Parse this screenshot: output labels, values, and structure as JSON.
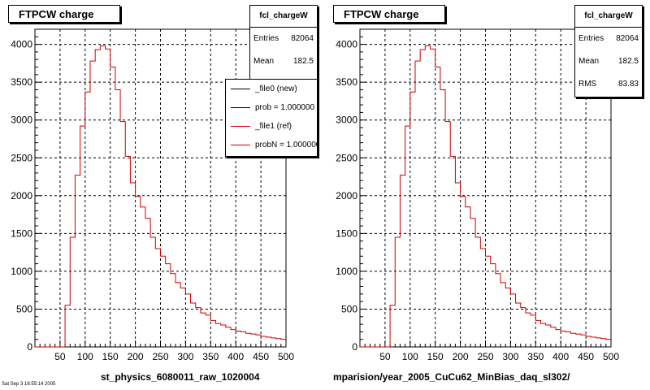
{
  "panels": [
    {
      "title": "FTPCW charge",
      "stats": {
        "name": "fcl_chargeW",
        "entries_label": "Entries",
        "entries": "82064",
        "mean_label": "Mean",
        "mean": "182.5"
      },
      "legend": [
        {
          "label": "_file0 (new)",
          "color": "#000000"
        },
        {
          "label": "prob = 1.000000",
          "color": "#000000"
        },
        {
          "label": "_file1 (ref)",
          "color": "#cc0000"
        },
        {
          "label": "probN = 1.000000",
          "color": "#cc0000"
        }
      ],
      "bottom_label": "st_physics_6080011_raw_1020004"
    },
    {
      "title": "FTPCW charge",
      "stats": {
        "name": "fcl_chargeW",
        "entries_label": "Entries",
        "entries": "82064",
        "mean_label": "Mean",
        "mean": "182.5",
        "rms_label": "RMS",
        "rms": "83.83"
      },
      "bottom_label": "mparision/year_2005_CuCu62_MinBias_daq_sl302/"
    }
  ],
  "footer_text": "Sat Sep 3 16:55:14 2005",
  "chart_data": [
    {
      "type": "area",
      "title": "FTPCW charge",
      "xlabel": "",
      "ylabel": "",
      "xlim": [
        0,
        500
      ],
      "ylim": [
        0,
        4200
      ],
      "x_ticks": [
        50,
        100,
        150,
        200,
        250,
        300,
        350,
        400,
        450,
        500
      ],
      "y_ticks": [
        0,
        500,
        1000,
        1500,
        2000,
        2500,
        3000,
        3500,
        4000
      ],
      "grid": true,
      "bin_width": 10,
      "series": [
        {
          "name": "_file1 (ref)",
          "color": "#cc0000",
          "bin_low_edges": [
            0,
            10,
            20,
            30,
            40,
            50,
            60,
            70,
            80,
            90,
            100,
            110,
            120,
            130,
            140,
            150,
            160,
            170,
            180,
            190,
            200,
            210,
            220,
            230,
            240,
            250,
            260,
            270,
            280,
            290,
            300,
            310,
            320,
            330,
            340,
            350,
            360,
            370,
            380,
            390,
            400,
            410,
            420,
            430,
            440,
            450,
            460,
            470,
            480,
            490
          ],
          "values": [
            0,
            0,
            0,
            0,
            0,
            0,
            550,
            1450,
            2270,
            2920,
            3370,
            3780,
            3930,
            3980,
            3940,
            3700,
            3400,
            2980,
            2520,
            2170,
            1990,
            1850,
            1700,
            1450,
            1300,
            1200,
            1100,
            970,
            850,
            780,
            700,
            580,
            520,
            450,
            420,
            350,
            310,
            290,
            260,
            230,
            210,
            200,
            180,
            170,
            160,
            140,
            130,
            120,
            110,
            100
          ]
        }
      ]
    },
    {
      "type": "area",
      "title": "FTPCW charge",
      "xlabel": "",
      "ylabel": "",
      "xlim": [
        0,
        500
      ],
      "ylim": [
        0,
        4200
      ],
      "x_ticks": [
        50,
        100,
        150,
        200,
        250,
        300,
        350,
        400,
        450,
        500
      ],
      "y_ticks": [
        0,
        500,
        1000,
        1500,
        2000,
        2500,
        3000,
        3500,
        4000
      ],
      "grid": true,
      "bin_width": 10,
      "series": [
        {
          "name": "fcl_chargeW",
          "color": "#cc0000",
          "bin_low_edges": [
            0,
            10,
            20,
            30,
            40,
            50,
            60,
            70,
            80,
            90,
            100,
            110,
            120,
            130,
            140,
            150,
            160,
            170,
            180,
            190,
            200,
            210,
            220,
            230,
            240,
            250,
            260,
            270,
            280,
            290,
            300,
            310,
            320,
            330,
            340,
            350,
            360,
            370,
            380,
            390,
            400,
            410,
            420,
            430,
            440,
            450,
            460,
            470,
            480,
            490
          ],
          "values": [
            0,
            0,
            0,
            0,
            0,
            0,
            550,
            1450,
            2270,
            2920,
            3370,
            3780,
            3930,
            3980,
            3940,
            3700,
            3400,
            2980,
            2520,
            2170,
            1990,
            1850,
            1700,
            1450,
            1300,
            1200,
            1100,
            970,
            850,
            780,
            700,
            580,
            520,
            450,
            420,
            350,
            310,
            290,
            260,
            230,
            210,
            200,
            180,
            170,
            160,
            140,
            130,
            120,
            110,
            100
          ]
        }
      ]
    }
  ]
}
